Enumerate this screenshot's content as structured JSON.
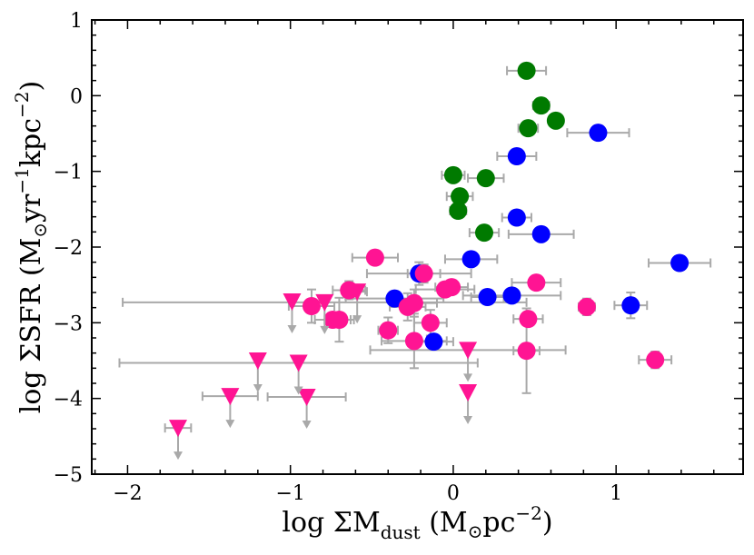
{
  "chart_data": {
    "type": "scatter",
    "title": "",
    "xlabel": {
      "prefix": "log ΣM",
      "sub": "dust",
      "paren_open": " (M",
      "sun": "⊙",
      "unit": "pc",
      "exp": "−2",
      "paren_close": ")"
    },
    "ylabel": {
      "prefix": "log ΣSFR (M",
      "sun": "⊙",
      "unit1": "yr",
      "exp1": "−1",
      "unit2": "kpc",
      "exp2": "−2",
      "paren_close": ")"
    },
    "xlim": [
      -2.22,
      1.78
    ],
    "ylim": [
      -5,
      1
    ],
    "xticks": [
      -2,
      -1,
      0,
      1
    ],
    "xtick_labels": [
      "−2",
      "−1",
      "0",
      "1"
    ],
    "yticks": [
      1,
      0,
      -1,
      -2,
      -3,
      -4,
      -5
    ],
    "ytick_labels": [
      "1",
      "0",
      "−1",
      "−2",
      "−3",
      "−4",
      "−5"
    ],
    "grid": false,
    "colors": {
      "green": "#007a00",
      "blue": "#0000ff",
      "pink": "#ff1493",
      "errorbar": "#a9a9a9",
      "upper": "#ff1493"
    },
    "series": [
      {
        "name": "green",
        "marker": "circle",
        "points": [
          {
            "x": 0.45,
            "y": 0.33,
            "xerr": 0.12,
            "yerr": 0
          },
          {
            "x": 0.54,
            "y": -0.13,
            "xerr": 0.05,
            "yerr": 0
          },
          {
            "x": 0.63,
            "y": -0.33,
            "xerr": 0,
            "yerr": 0
          },
          {
            "x": 0.46,
            "y": -0.43,
            "xerr": 0.06,
            "yerr": 0
          },
          {
            "x": 0.0,
            "y": -1.05,
            "xerr": 0.07,
            "yerr": 0
          },
          {
            "x": 0.2,
            "y": -1.09,
            "xerr": 0.11,
            "yerr": 0
          },
          {
            "x": 0.04,
            "y": -1.33,
            "xerr": 0.08,
            "yerr": 0
          },
          {
            "x": 0.03,
            "y": -1.52,
            "xerr": 0.05,
            "yerr": 0
          },
          {
            "x": 0.19,
            "y": -1.81,
            "xerr": 0.09,
            "yerr": 0
          }
        ]
      },
      {
        "name": "blue",
        "marker": "circle",
        "points": [
          {
            "x": 0.89,
            "y": -0.49,
            "xerr": 0.19,
            "yerr": 0
          },
          {
            "x": 0.39,
            "y": -0.8,
            "xerr": 0.12,
            "yerr": 0
          },
          {
            "x": 0.39,
            "y": -1.61,
            "xerr": 0.09,
            "yerr": 0
          },
          {
            "x": 0.54,
            "y": -1.83,
            "xerr": 0.2,
            "yerr": 0
          },
          {
            "x": 0.11,
            "y": -2.16,
            "xerr": 0.16,
            "yerr": 0
          },
          {
            "x": 1.39,
            "y": -2.21,
            "xerr": 0.19,
            "yerr": 0
          },
          {
            "x": -0.21,
            "y": -2.35,
            "xerr": 0.32,
            "yerr": 0.15
          },
          {
            "x": 0.21,
            "y": -2.66,
            "xerr": 0.1,
            "yerr": 0
          },
          {
            "x": 0.36,
            "y": -2.64,
            "xerr": 0.3,
            "yerr": 0
          },
          {
            "x": -0.36,
            "y": -2.68,
            "xerr": 0.3,
            "yerr": 0
          },
          {
            "x": 1.09,
            "y": -2.77,
            "xerr": 0.1,
            "yerr": 0.17
          },
          {
            "x": -0.12,
            "y": -3.25,
            "xerr": 0.12,
            "yerr": 0
          }
        ]
      },
      {
        "name": "pink",
        "marker": "circle",
        "points": [
          {
            "x": -0.48,
            "y": -2.14,
            "xerr": 0.14,
            "yerr": 0
          },
          {
            "x": -0.18,
            "y": -2.35,
            "xerr": 0.1,
            "yerr": 0.12
          },
          {
            "x": 0.51,
            "y": -2.47,
            "xerr": 0.15,
            "yerr": 0
          },
          {
            "x": -0.05,
            "y": -2.56,
            "xerr": 0.18,
            "yerr": 0
          },
          {
            "x": -0.01,
            "y": -2.53,
            "xerr": 0.1,
            "yerr": 0
          },
          {
            "x": -0.64,
            "y": -2.57,
            "xerr": 0.1,
            "yerr": 0.12
          },
          {
            "x": -0.24,
            "y": -2.74,
            "xerr": 0.14,
            "yerr": 0.18
          },
          {
            "x": -0.28,
            "y": -2.79,
            "xerr": 0.11,
            "yerr": 0.18
          },
          {
            "x": -0.87,
            "y": -2.78,
            "xerr": 0.14,
            "yerr": 0.22
          },
          {
            "x": 0.82,
            "y": -2.79,
            "xerr": 0.05,
            "yerr": 0.11
          },
          {
            "x": -0.74,
            "y": -2.96,
            "xerr": 0.11,
            "yerr": 0
          },
          {
            "x": -0.7,
            "y": -2.96,
            "xerr": 0.09,
            "yerr": 0.29
          },
          {
            "x": 0.46,
            "y": -2.95,
            "xerr": 0.09,
            "yerr": 0.08
          },
          {
            "x": -0.14,
            "y": -3.0,
            "xerr": 0.1,
            "yerr": 0.17
          },
          {
            "x": -0.4,
            "y": -3.1,
            "xerr": 0.06,
            "yerr": 0.17
          },
          {
            "x": -0.24,
            "y": -3.24,
            "xerr": 0.2,
            "yerr": 0.36
          },
          {
            "x": 0.45,
            "y": -3.37,
            "xerr": 0.08,
            "yerr": 0.56
          },
          {
            "x": 1.24,
            "y": -3.49,
            "xerr": 0.1,
            "yerr": 0.11
          }
        ]
      },
      {
        "name": "upper limits",
        "marker": "triangle-down",
        "points": [
          {
            "x": -0.99,
            "y": -2.72,
            "xerr": 0,
            "yerr": 0
          },
          {
            "x": -0.59,
            "y": -2.59,
            "xerr": 0.06,
            "yerr": 0
          },
          {
            "x": -1.2,
            "y": -3.5,
            "xerr": 0,
            "yerr": 0
          },
          {
            "x": 0.09,
            "y": -3.36,
            "xerr": 0.6,
            "yerr": 0
          },
          {
            "x": 0.09,
            "y": -3.92,
            "xerr": 0,
            "yerr": 0
          },
          {
            "x": -1.37,
            "y": -3.97,
            "xerr": 0.17,
            "yerr": 0
          },
          {
            "x": -0.9,
            "y": -3.98,
            "xerr": 0.24,
            "yerr": 0
          },
          {
            "x": -1.69,
            "y": -4.39,
            "xerr": 0.08,
            "yerr": 0
          },
          {
            "x": -0.79,
            "y": -2.73,
            "xerr": 1.24,
            "yerr": 0
          },
          {
            "x": -0.95,
            "y": -3.53,
            "xerr": 1.1,
            "yerr": 0
          }
        ]
      }
    ]
  }
}
